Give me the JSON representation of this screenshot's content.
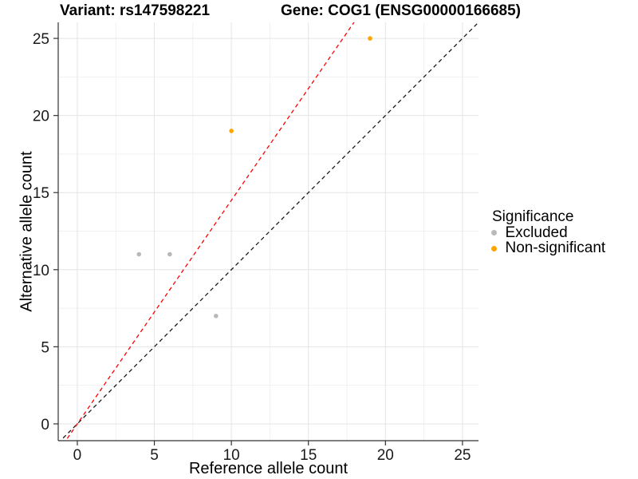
{
  "chart_data": {
    "type": "scatter",
    "title_left": "Variant: rs147598221",
    "title_right": "Gene: COG1 (ENSG00000166685)",
    "xlabel": "Reference allele count",
    "ylabel": "Alternative allele count",
    "x_ticks": [
      0,
      5,
      10,
      15,
      20,
      25
    ],
    "y_ticks": [
      0,
      5,
      10,
      15,
      20,
      25
    ],
    "x_minor_ticks": [
      2.5,
      7.5,
      12.5,
      17.5,
      22.5
    ],
    "y_minor_ticks": [
      2.5,
      7.5,
      12.5,
      17.5,
      22.5
    ],
    "xlim": [
      -1.24,
      26.04
    ],
    "ylim": [
      -1.09,
      26.04
    ],
    "grid": true,
    "legend_position": "right",
    "series": [
      {
        "name": "Excluded",
        "color": "#B9B9B9",
        "points": [
          [
            4,
            11
          ],
          [
            6,
            11
          ],
          [
            9,
            7
          ]
        ]
      },
      {
        "name": "Non-significant",
        "color": "#FFA500",
        "points": [
          [
            10,
            19
          ],
          [
            19,
            25
          ]
        ]
      }
    ],
    "lines": [
      {
        "name": "identity-line",
        "slope": 1,
        "intercept": 0,
        "color": "#1A1A1A",
        "style": "dashed"
      },
      {
        "name": "allelic-ratio-line",
        "slope": 1.45,
        "intercept": 0,
        "color": "#FF0000",
        "style": "dashed"
      }
    ],
    "legend": {
      "title": "Significance",
      "items": [
        {
          "label": "Excluded",
          "color": "#B9B9B9"
        },
        {
          "label": "Non-significant",
          "color": "#FFA500"
        }
      ]
    },
    "colors": {
      "background": "#FFFFFF",
      "grid_major": "#E4E4E4",
      "grid_minor": "#F1F1F1",
      "axis": "#333333",
      "tick_text": "#1A1A1A"
    }
  }
}
